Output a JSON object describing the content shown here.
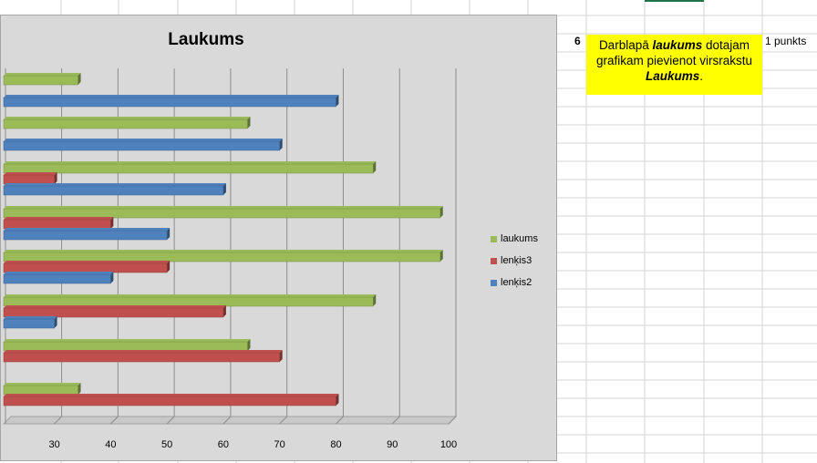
{
  "sheet": {
    "row_number": "6",
    "task": {
      "text_parts": [
        "Darblapā ",
        "laukums",
        " dotajam grafikam pievienot virsrakstu ",
        "Laukums",
        "."
      ]
    },
    "points_label": "1 punkts"
  },
  "chart_data": {
    "type": "bar",
    "orientation": "horizontal",
    "title": "Laukums",
    "xlabel": "",
    "ylabel": "",
    "x_ticks": [
      "30",
      "40",
      "50",
      "60",
      "70",
      "80",
      "90",
      "100"
    ],
    "xlim": [
      21,
      100
    ],
    "grid": true,
    "legend_position": "right",
    "series": [
      {
        "name": "laukums",
        "color": "#9bbb59",
        "values": [
          34.2,
          64.3,
          86.6,
          98.5,
          98.5,
          86.6,
          64.3,
          34.2
        ]
      },
      {
        "name": "lenķis3",
        "color": "#c0504d",
        "values": [
          80,
          70,
          60,
          50,
          40,
          30,
          null,
          null
        ]
      },
      {
        "name": "lenķis2",
        "color": "#4f81bd",
        "values": [
          null,
          null,
          30,
          40,
          50,
          60,
          70,
          80
        ]
      }
    ],
    "legend": [
      "laukums",
      "lenķis3",
      "lenķis2"
    ]
  }
}
